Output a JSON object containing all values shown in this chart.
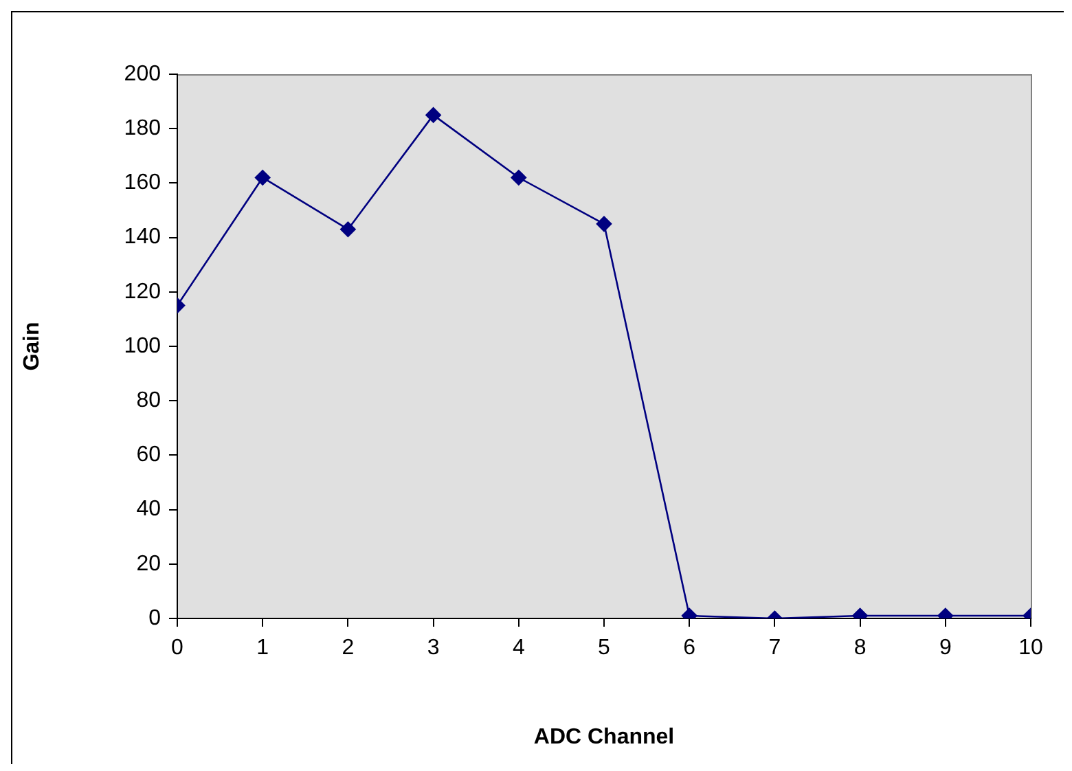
{
  "chart_data": {
    "type": "line",
    "xlabel": "ADC Channel",
    "ylabel": "Gain",
    "x": [
      0,
      1,
      2,
      3,
      4,
      5,
      6,
      7,
      8,
      9,
      10
    ],
    "series": [
      {
        "color": "#000080",
        "values": [
          115,
          162,
          143,
          185,
          162,
          145,
          1,
          0,
          1,
          1,
          1
        ]
      }
    ],
    "xlim": [
      0,
      10
    ],
    "xticks": [
      0,
      1,
      2,
      3,
      4,
      5,
      6,
      7,
      8,
      9,
      10
    ],
    "ylim": [
      0,
      200
    ],
    "yticks": [
      0,
      20,
      40,
      60,
      80,
      100,
      120,
      140,
      160,
      180,
      200
    ],
    "grid": false,
    "legend": false,
    "marker": "diamond",
    "line_style": "solid"
  }
}
